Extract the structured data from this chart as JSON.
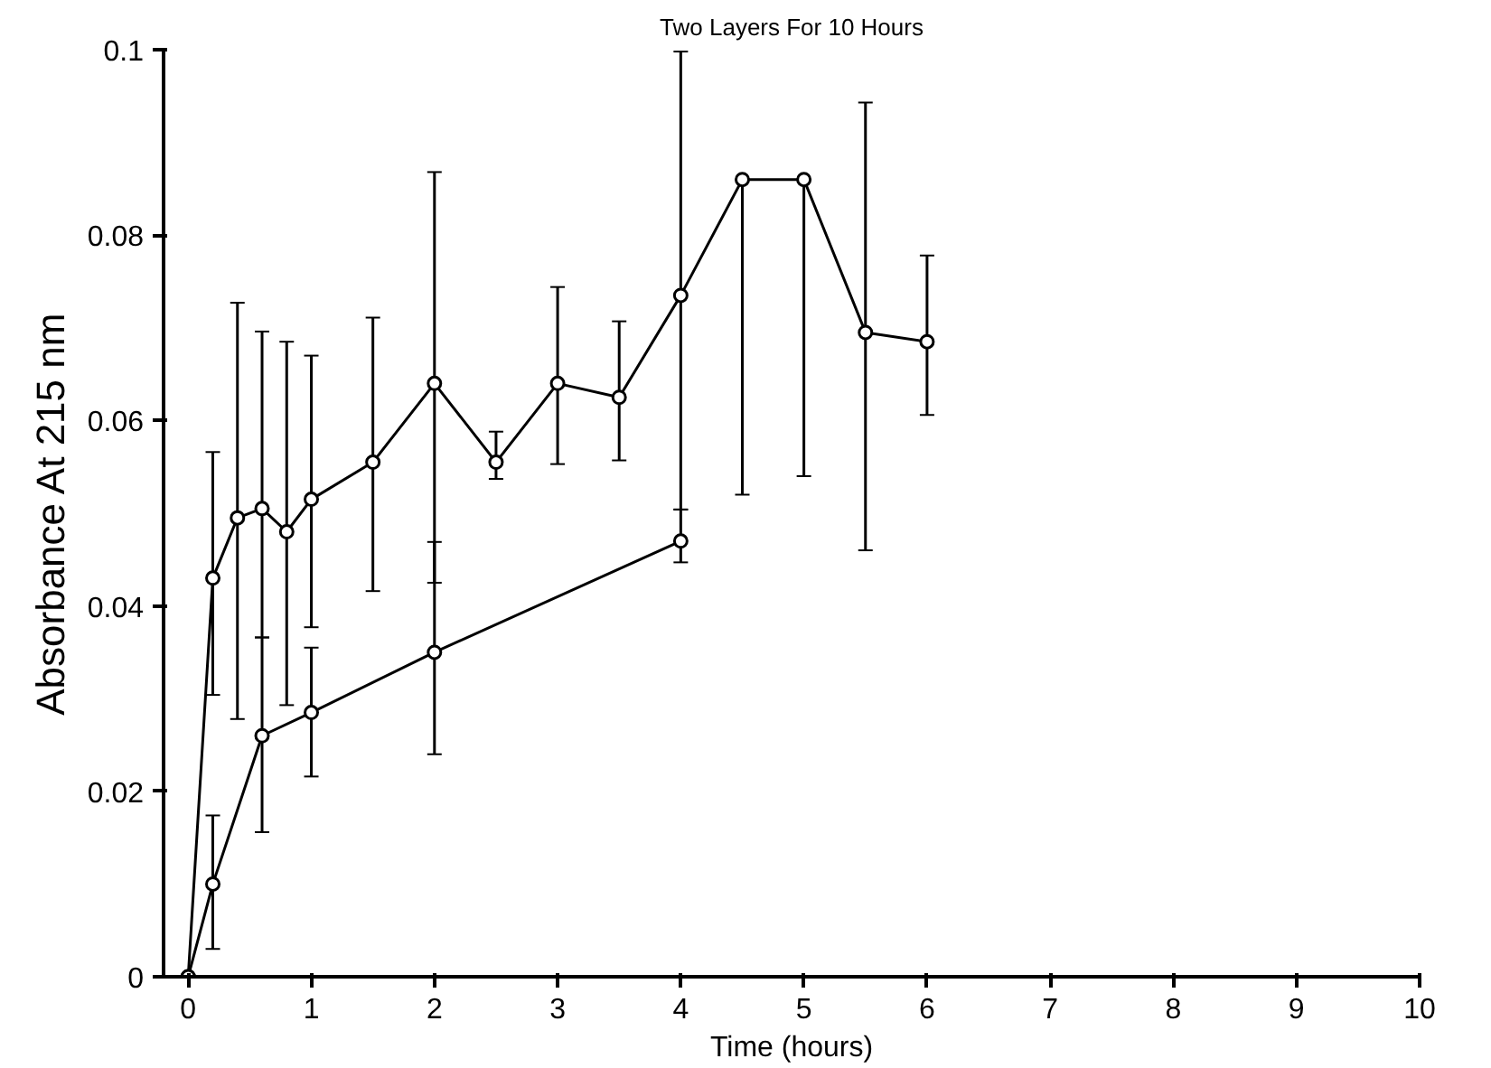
{
  "chart_data": {
    "type": "line",
    "title": "Two Layers For 10 Hours",
    "xlabel": "Time (hours)",
    "ylabel": "Absorbance At 215 nm",
    "xlim": [
      -0.2,
      10
    ],
    "xticks": [
      0,
      1,
      2,
      3,
      4,
      5,
      6,
      7,
      8,
      9,
      10
    ],
    "ylim": [
      0,
      0.1
    ],
    "yticks": [
      0,
      0.02,
      0.04,
      0.06,
      0.08,
      0.1
    ],
    "grid": false,
    "marker": "circle",
    "line_style": "solid",
    "series": [
      {
        "color": "#000000",
        "x": [
          0,
          0.2,
          0.4,
          0.6,
          0.8,
          1,
          1.5,
          2,
          2.5,
          3,
          3.5,
          4,
          4.5,
          5,
          5.5,
          6
        ],
        "values": [
          0,
          0.043,
          0.0495,
          0.0505,
          0.048,
          0.0515,
          0.0555,
          0.064,
          0.0555,
          0.064,
          0.0625,
          0.0735,
          0.086,
          0.086,
          0.0695,
          0.0685
        ],
        "errors": [
          null,
          [
            0.0304,
            0.0566
          ],
          [
            0.0278,
            0.0727
          ],
          [
            0.0366,
            0.0696
          ],
          [
            0.0293,
            0.0685
          ],
          [
            0.0377,
            0.067
          ],
          [
            0.0416,
            0.0711
          ],
          [
            0.0425,
            0.0868
          ],
          [
            0.0537,
            0.0588
          ],
          [
            0.0553,
            0.0744
          ],
          [
            0.0557,
            0.0707
          ],
          [
            0.0504,
            0.0998
          ],
          [
            0.052,
            0.086
          ],
          [
            0.054,
            0.086
          ],
          [
            0.046,
            0.0943
          ],
          [
            0.0606,
            0.0778
          ]
        ]
      },
      {
        "color": "#000000",
        "x": [
          0,
          0.2,
          0.6,
          1,
          2,
          4
        ],
        "values": [
          0,
          0.01,
          0.026,
          0.0285,
          0.035,
          0.047
        ],
        "errors": [
          null,
          [
            0.003,
            0.0174
          ],
          [
            0.0156,
            0.0366
          ],
          [
            0.0216,
            0.0355
          ],
          [
            0.024,
            0.0469
          ],
          [
            0.0447,
            0.0504
          ]
        ]
      }
    ]
  }
}
